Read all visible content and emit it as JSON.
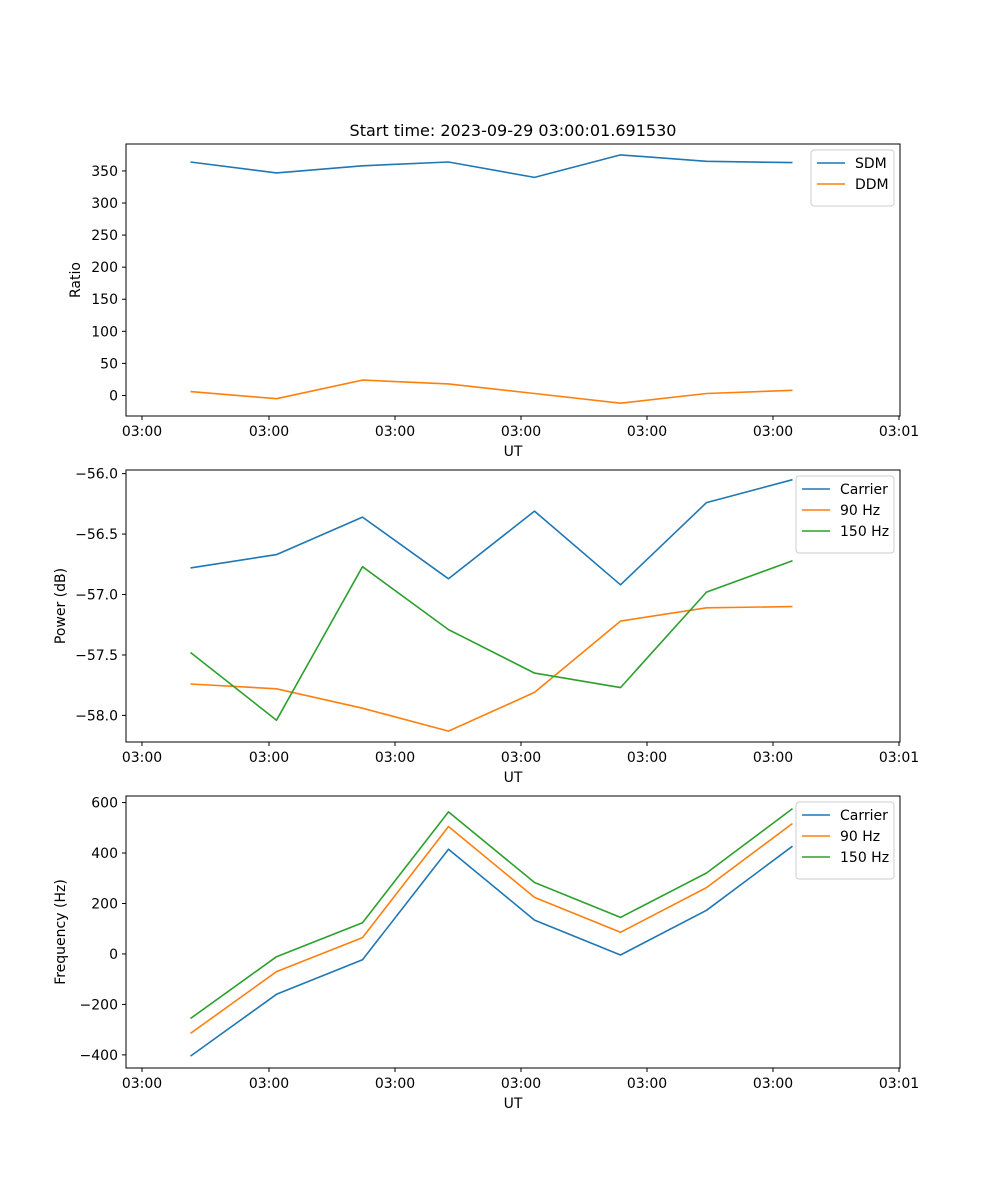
{
  "chart_data": [
    {
      "type": "line",
      "title": "Start time: 2023-09-29 03:00:01.691530",
      "xlabel": "UT",
      "ylabel": "Ratio",
      "x_tick_labels": [
        "03:00",
        "03:00",
        "03:00",
        "03:00",
        "03:00",
        "03:00",
        "03:01"
      ],
      "y_ticks": [
        0,
        50,
        100,
        150,
        200,
        250,
        300,
        350
      ],
      "ylim": [
        -32,
        392
      ],
      "x_positions": [
        1,
        2,
        3,
        4,
        5,
        6,
        7,
        8
      ],
      "xlim": [
        0.25,
        9.25
      ],
      "legend_loc": "upper right",
      "series": [
        {
          "name": "SDM",
          "color": "#1f77b4",
          "values": [
            364,
            347,
            358,
            364,
            340,
            375,
            365,
            363
          ]
        },
        {
          "name": "DDM",
          "color": "#ff7f0e",
          "values": [
            6,
            -5,
            24,
            18,
            3,
            -12,
            3,
            8
          ]
        }
      ]
    },
    {
      "type": "line",
      "title": "",
      "xlabel": "UT",
      "ylabel": "Power (dB)",
      "x_tick_labels": [
        "03:00",
        "03:00",
        "03:00",
        "03:00",
        "03:00",
        "03:00",
        "03:01"
      ],
      "y_ticks": [
        -58.0,
        -57.5,
        -57.0,
        -56.5,
        -56.0
      ],
      "y_tick_labels": [
        "−58.0",
        "−57.5",
        "−57.0",
        "−56.5",
        "−56.0"
      ],
      "ylim": [
        -58.22,
        -55.97
      ],
      "x_positions": [
        1,
        2,
        3,
        4,
        5,
        6,
        7,
        8
      ],
      "xlim": [
        0.25,
        9.25
      ],
      "legend_loc": "upper right",
      "series": [
        {
          "name": "Carrier",
          "color": "#1f77b4",
          "values": [
            -56.78,
            -56.67,
            -56.36,
            -56.87,
            -56.31,
            -56.92,
            -56.24,
            -56.05
          ]
        },
        {
          "name": "90 Hz",
          "color": "#ff7f0e",
          "values": [
            -57.74,
            -57.78,
            -57.94,
            -58.13,
            -57.81,
            -57.22,
            -57.11,
            -57.1
          ]
        },
        {
          "name": "150 Hz",
          "color": "#2ca02c",
          "values": [
            -57.48,
            -58.04,
            -56.77,
            -57.29,
            -57.65,
            -57.77,
            -56.98,
            -56.72
          ]
        }
      ]
    },
    {
      "type": "line",
      "title": "",
      "xlabel": "UT",
      "ylabel": "Frequency (Hz)",
      "x_tick_labels": [
        "03:00",
        "03:00",
        "03:00",
        "03:00",
        "03:00",
        "03:00",
        "03:01"
      ],
      "y_ticks": [
        -400,
        -200,
        0,
        200,
        400,
        600
      ],
      "y_tick_labels": [
        "−400",
        "−200",
        "0",
        "200",
        "400",
        "600"
      ],
      "ylim": [
        -452,
        626
      ],
      "x_positions": [
        1,
        2,
        3,
        4,
        5,
        6,
        7,
        8
      ],
      "xlim": [
        0.25,
        9.25
      ],
      "legend_loc": "upper right",
      "series": [
        {
          "name": "Carrier",
          "color": "#1f77b4",
          "values": [
            -405,
            -160,
            -23,
            415,
            134,
            -4,
            173,
            427
          ]
        },
        {
          "name": "90 Hz",
          "color": "#ff7f0e",
          "values": [
            -315,
            -70,
            65,
            505,
            224,
            86,
            263,
            517
          ]
        },
        {
          "name": "150 Hz",
          "color": "#2ca02c",
          "values": [
            -256,
            -11,
            124,
            563,
            283,
            145,
            321,
            576
          ]
        }
      ]
    }
  ]
}
